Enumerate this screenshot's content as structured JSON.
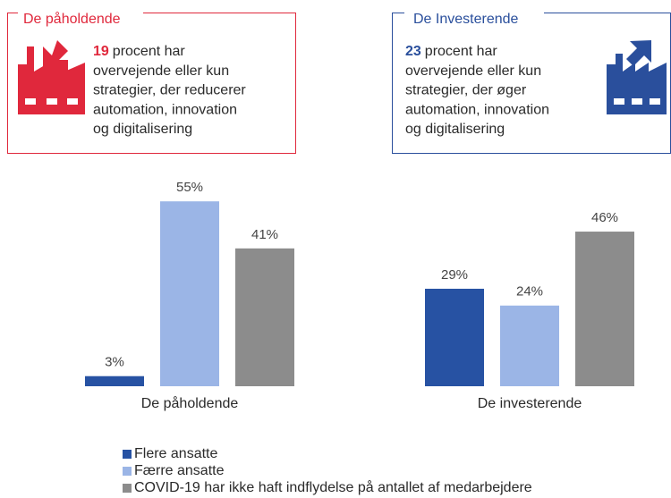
{
  "boxes": [
    {
      "title": "De påholdende",
      "highlight": "19",
      "lines": [
        "procent har",
        "overvejende eller kun",
        "strategier, der reducerer",
        "automation, innovation",
        "og digitalisering"
      ]
    },
    {
      "title": "De Investerende",
      "highlight": "23",
      "lines": [
        "procent har",
        "overvejende eller kun",
        "strategier, der øger",
        "automation, innovation",
        "og digitalisering"
      ]
    }
  ],
  "chart_data": {
    "type": "bar",
    "categories": [
      "De påholdende",
      "De investerende"
    ],
    "series": [
      {
        "name": "Flere ansatte",
        "color": "#2752a3",
        "values": [
          3,
          29
        ],
        "value_labels": [
          "3%",
          "29%"
        ]
      },
      {
        "name": "Færre ansatte",
        "color": "#9bb5e6",
        "values": [
          55,
          24
        ],
        "value_labels": [
          "55%",
          "24%"
        ]
      },
      {
        "name": "COVID-19 har ikke haft indflydelse på antallet af medarbejdere",
        "color": "#8c8c8c",
        "values": [
          41,
          46
        ],
        "value_labels": [
          "41%",
          "46%"
        ]
      }
    ]
  }
}
